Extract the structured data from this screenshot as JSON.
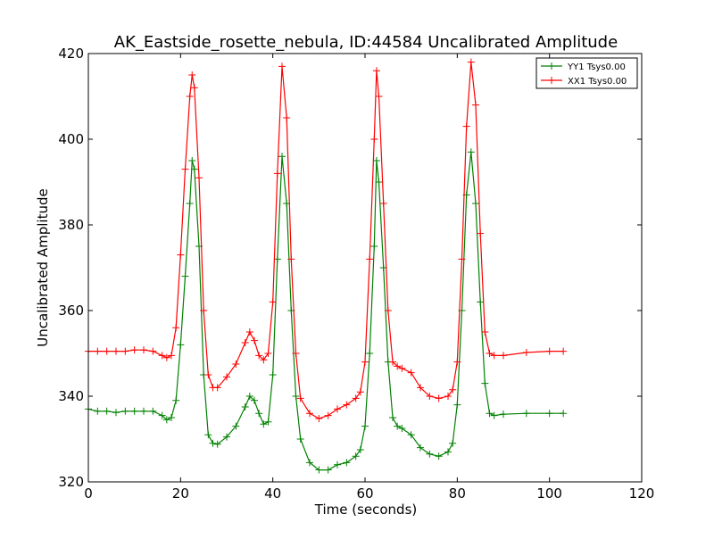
{
  "chart_data": {
    "type": "line",
    "title": "AK_Eastside_rosette_nebula, ID:44584 Uncalibrated Amplitude",
    "xlabel": "Time (seconds)",
    "ylabel": "Uncalibrated Amplitude",
    "xlim": [
      0,
      120
    ],
    "ylim": [
      320,
      420
    ],
    "xticks": [
      0,
      20,
      40,
      60,
      80,
      100,
      120
    ],
    "yticks": [
      320,
      340,
      360,
      380,
      400,
      420
    ],
    "grid": false,
    "legend_position": "top-right",
    "marker": "+",
    "series": [
      {
        "name": "YY1 Tsys0.00",
        "color": "#008000",
        "x": [
          0,
          2,
          4,
          6,
          8,
          10,
          12,
          14,
          16,
          17,
          18,
          19,
          20,
          21,
          22,
          22.5,
          23,
          24,
          25,
          26,
          27,
          28,
          30,
          32,
          34,
          35,
          36,
          37,
          38,
          39,
          40,
          41,
          42,
          43,
          44,
          45,
          46,
          48,
          50,
          52,
          54,
          56,
          58,
          59,
          60,
          61,
          62,
          62.5,
          63,
          64,
          65,
          66,
          67,
          68,
          70,
          72,
          74,
          76,
          78,
          79,
          80,
          81,
          82,
          83,
          84,
          85,
          86,
          87,
          88,
          90,
          95,
          100,
          103
        ],
        "y": [
          337,
          336.5,
          336.5,
          336.2,
          336.5,
          336.5,
          336.5,
          336.5,
          335.5,
          334.5,
          335,
          339,
          352,
          368,
          385,
          395,
          393,
          375,
          345,
          331,
          329,
          328.8,
          330.5,
          333,
          337.5,
          340,
          339,
          336,
          333.5,
          334,
          345,
          372,
          396,
          385,
          360,
          340,
          330,
          324.5,
          322.8,
          322.8,
          324,
          324.5,
          326,
          327.5,
          333,
          350,
          375,
          395,
          390,
          370,
          348,
          335,
          333,
          332.5,
          331,
          328,
          326.5,
          326,
          327,
          329,
          338,
          360,
          387,
          397,
          385,
          362,
          343,
          336,
          335.5,
          335.8,
          336,
          336,
          336
        ]
      },
      {
        "name": "XX1 Tsys0.00",
        "color": "#ff0000",
        "x": [
          0,
          2,
          4,
          6,
          8,
          10,
          12,
          14,
          16,
          17,
          18,
          19,
          20,
          21,
          22,
          22.5,
          23,
          24,
          25,
          26,
          27,
          28,
          30,
          32,
          34,
          35,
          36,
          37,
          38,
          39,
          40,
          41,
          42,
          43,
          44,
          45,
          46,
          48,
          50,
          52,
          54,
          56,
          58,
          59,
          60,
          61,
          62,
          62.5,
          63,
          64,
          65,
          66,
          67,
          68,
          70,
          72,
          74,
          76,
          78,
          79,
          80,
          81,
          82,
          83,
          84,
          85,
          86,
          87,
          88,
          90,
          95,
          100,
          103
        ],
        "y": [
          350.5,
          350.5,
          350.5,
          350.5,
          350.5,
          350.8,
          350.8,
          350.5,
          349.5,
          349,
          349.5,
          356,
          373,
          393,
          410,
          415,
          412,
          391,
          360,
          345,
          342,
          342,
          344.5,
          347.5,
          352.5,
          355,
          353,
          349.5,
          348.5,
          350,
          362,
          392,
          417,
          405,
          372,
          350,
          339.5,
          336,
          334.8,
          335.5,
          337,
          338,
          339.5,
          341,
          348,
          372,
          400,
          416,
          410,
          385,
          360,
          348,
          347,
          346.5,
          345.5,
          342,
          340,
          339.5,
          340,
          341.5,
          348,
          372,
          403,
          418,
          408,
          378,
          355,
          350,
          349.5,
          349.5,
          350.2,
          350.5,
          350.5
        ]
      }
    ]
  }
}
